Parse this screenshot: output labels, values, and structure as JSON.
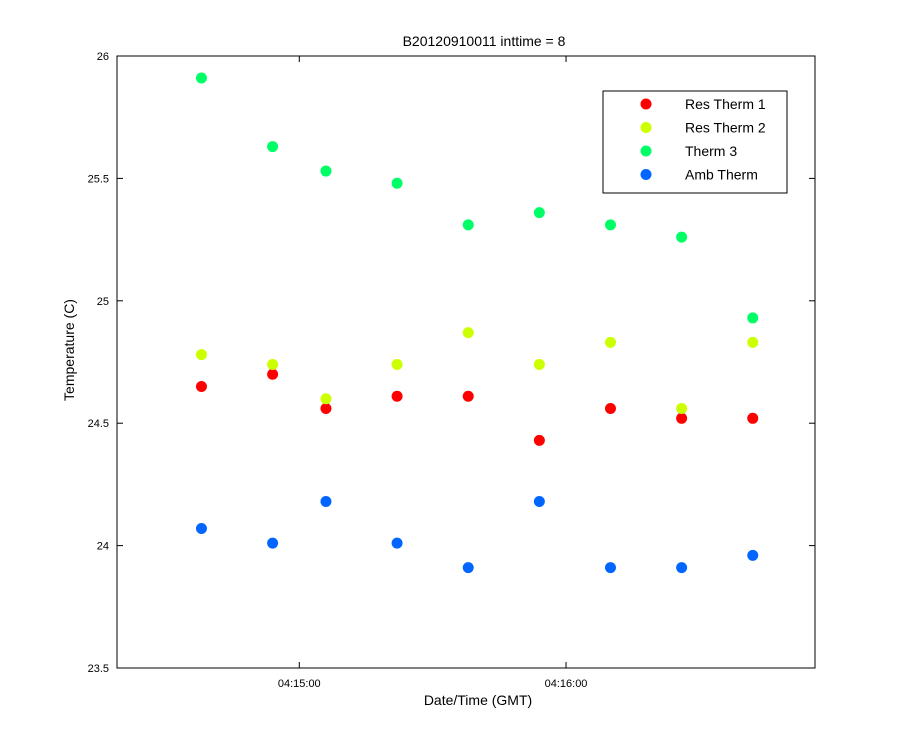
{
  "chart_data": {
    "type": "scatter",
    "title": "B20120910011 inttime = 8",
    "xlabel": "Date/Time (GMT)",
    "ylabel": "Temperature (C)",
    "x": [
      "04:14:38",
      "04:14:54",
      "04:15:06",
      "04:15:22",
      "04:15:38",
      "04:15:54",
      "04:16:10",
      "04:16:26",
      "04:16:42"
    ],
    "x_ticks": [
      "04:15:00",
      "04:16:00"
    ],
    "xlim": [
      "04:14:19",
      "04:16:56"
    ],
    "ylim": [
      23.5,
      26
    ],
    "y_ticks": [
      23.5,
      24,
      24.5,
      25,
      25.5,
      26
    ],
    "y_tick_labels": [
      "23.5",
      "24",
      "24.5",
      "25",
      "25.5",
      "26"
    ],
    "grid": false,
    "legend_position": "top-right",
    "series": [
      {
        "name": "Res Therm 1",
        "color": "#ff0000",
        "values": [
          24.65,
          24.7,
          24.56,
          24.61,
          24.61,
          24.43,
          24.56,
          24.52,
          24.52
        ]
      },
      {
        "name": "Res Therm 2",
        "color": "#ccff00",
        "values": [
          24.78,
          24.74,
          24.6,
          24.74,
          24.87,
          24.74,
          24.83,
          24.56,
          24.83
        ]
      },
      {
        "name": "Therm 3",
        "color": "#00ff66",
        "values": [
          25.91,
          25.63,
          25.53,
          25.48,
          25.31,
          25.36,
          25.31,
          25.26,
          24.93
        ]
      },
      {
        "name": "Amb Therm",
        "color": "#0066ff",
        "values": [
          24.07,
          24.01,
          24.18,
          24.01,
          23.91,
          24.18,
          23.91,
          23.91,
          23.96
        ]
      }
    ]
  }
}
